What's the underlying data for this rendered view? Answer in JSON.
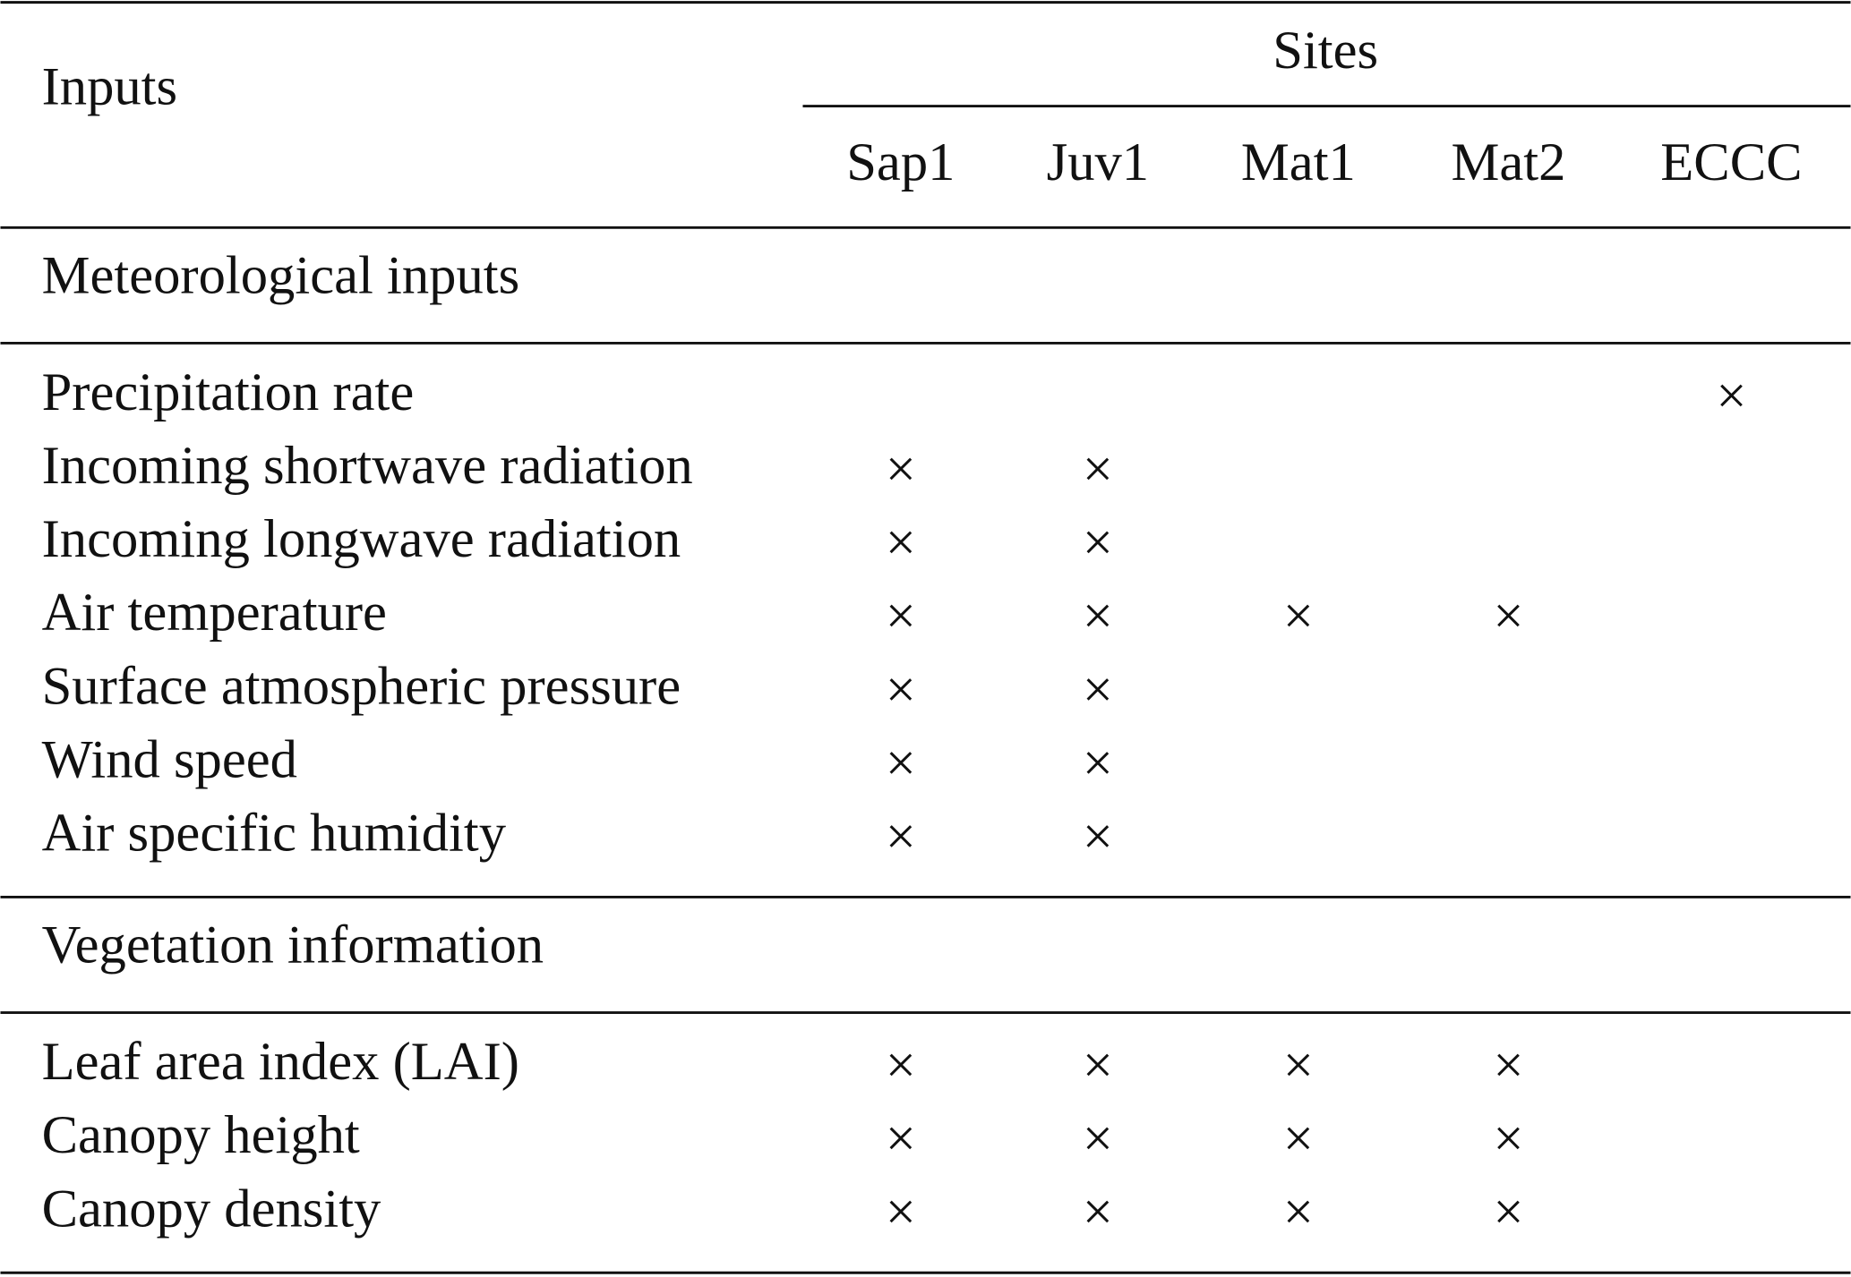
{
  "header": {
    "row_label": "Inputs",
    "group": "Sites",
    "columns": [
      "Sap1",
      "Juv1",
      "Mat1",
      "Mat2",
      "ECCC"
    ]
  },
  "sections": [
    {
      "title": "Meteorological inputs",
      "rows": [
        {
          "label": "Precipitation rate",
          "cells": [
            null,
            null,
            null,
            null,
            "×"
          ]
        },
        {
          "label": "Incoming shortwave radiation",
          "cells": [
            "×",
            "×",
            null,
            null,
            null
          ]
        },
        {
          "label": "Incoming longwave radiation",
          "cells": [
            "×",
            "×",
            null,
            null,
            null
          ]
        },
        {
          "label": "Air temperature",
          "cells": [
            "×",
            "×",
            "×",
            "×",
            null
          ]
        },
        {
          "label": "Surface atmospheric pressure",
          "cells": [
            "×",
            "×",
            null,
            null,
            null
          ]
        },
        {
          "label": "Wind speed",
          "cells": [
            "×",
            "×",
            null,
            null,
            null
          ]
        },
        {
          "label": "Air specific humidity",
          "cells": [
            "×",
            "×",
            null,
            null,
            null
          ]
        }
      ]
    },
    {
      "title": "Vegetation information",
      "rows": [
        {
          "label": "Leaf area index (LAI)",
          "cells": [
            "×",
            "×",
            "×",
            "×",
            null
          ]
        },
        {
          "label": "Canopy height",
          "cells": [
            "×",
            "×",
            "×",
            "×",
            null
          ]
        },
        {
          "label": "Canopy density",
          "cells": [
            "×",
            "×",
            "×",
            "×",
            null
          ]
        }
      ]
    }
  ]
}
